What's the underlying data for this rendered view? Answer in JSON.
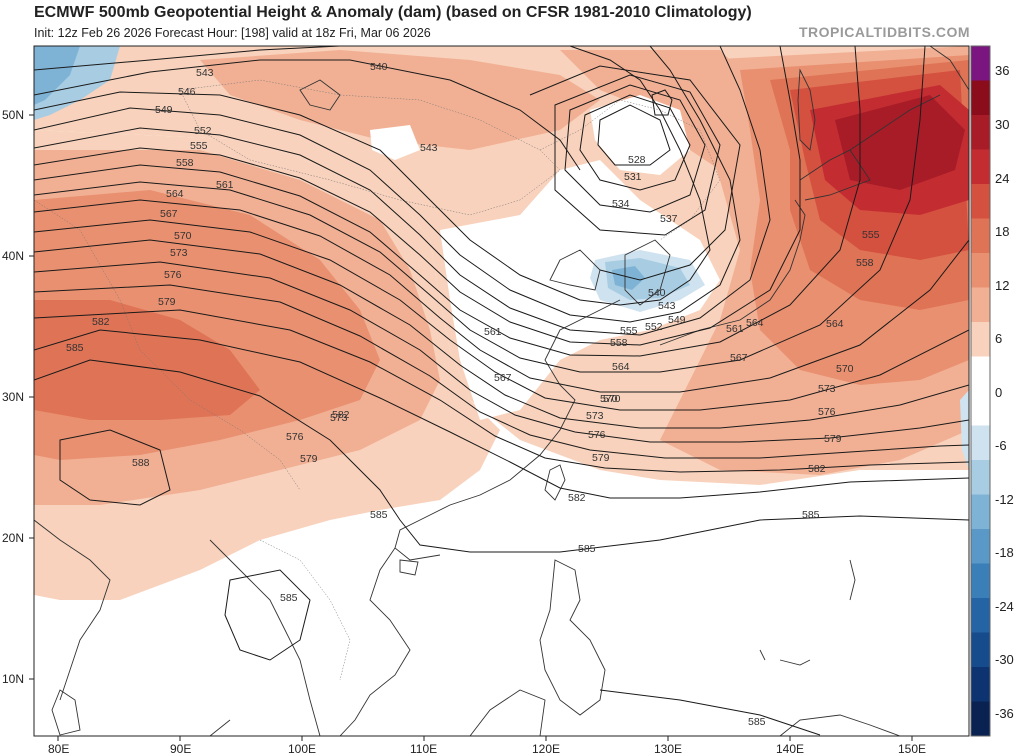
{
  "header": {
    "title": "ECMWF 500mb Geopotential Height & Anomaly (dam) (based on CFSR 1981-2010 Climatology)",
    "subtitle": "Init: 12z Feb 26 2026   Forecast Hour: [198]   valid at 18z Fri, Mar 06 2026",
    "brand": "TROPICALTIDBITS.COM"
  },
  "axes": {
    "lat_labels": [
      "50N",
      "40N",
      "30N",
      "20N",
      "10N"
    ],
    "lon_labels": [
      "80E",
      "90E",
      "100E",
      "110E",
      "120E",
      "130E",
      "140E",
      "150E"
    ]
  },
  "colorbar": {
    "labels": [
      "36",
      "30",
      "24",
      "18",
      "12",
      "6",
      "0",
      "-6",
      "-12",
      "-18",
      "-24",
      "-30",
      "-36"
    ],
    "colors": [
      "#7b1580",
      "#8b0d1c",
      "#a81c28",
      "#c32d31",
      "#d4503f",
      "#df7356",
      "#e99070",
      "#f1b094",
      "#f8d2bc",
      "#ffffff",
      "#ffffff",
      "#cfe2ef",
      "#a8cde3",
      "#7fb3d6",
      "#5a99c7",
      "#3b7fb8",
      "#2463a4",
      "#164b8c",
      "#0d3470",
      "#0a2252"
    ]
  },
  "contour_labels": [
    "543",
    "546",
    "549",
    "552",
    "555",
    "558",
    "561",
    "564",
    "567",
    "570",
    "573",
    "576",
    "579",
    "582",
    "585",
    "588",
    "540",
    "528",
    "531",
    "534",
    "537",
    "543",
    "549",
    "552",
    "555",
    "558",
    "561",
    "564",
    "567",
    "570",
    "573",
    "576",
    "579",
    "582",
    "585",
    "585",
    "585",
    "540",
    "543",
    "555",
    "558",
    "564",
    "570",
    "573",
    "576",
    "579",
    "582",
    "585",
    "561",
    "564",
    "567",
    "570",
    "573",
    "576",
    "579",
    "582",
    "585"
  ],
  "anomaly_fields": [
    {
      "name": "warm-ridge-west",
      "sign": "positive"
    },
    {
      "name": "warm-anomaly-pacific",
      "sign": "positive"
    },
    {
      "name": "cold-anomaly-korea",
      "sign": "negative"
    },
    {
      "name": "cold-anomaly-northwest",
      "sign": "negative"
    }
  ]
}
